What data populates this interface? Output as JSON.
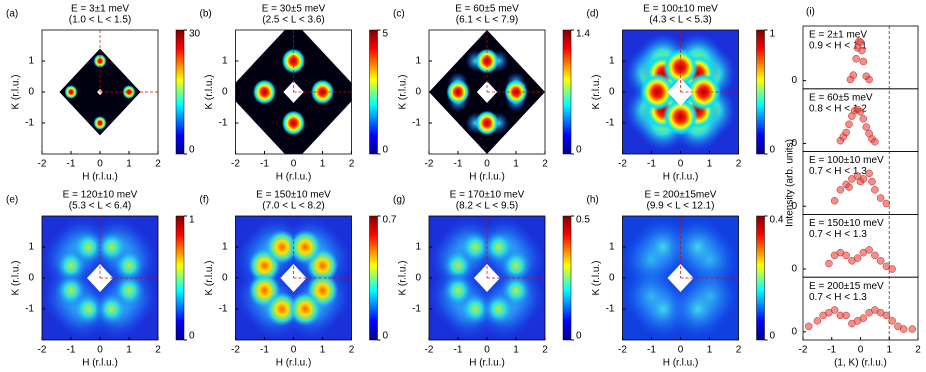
{
  "chart_data": [
    {
      "type": "heatmap",
      "label": "(a)",
      "title": "E = 3±1 meV",
      "subtitle": "(1.0 < L < 1.5)",
      "xlabel": "H (r.l.u.)",
      "ylabel": "K (r.l.u.)",
      "xlim": [
        -2,
        2
      ],
      "xticks": [
        -2,
        -1,
        0,
        1,
        2
      ],
      "ylim": [
        -2,
        2
      ],
      "yticks": [
        -1,
        0,
        1
      ],
      "clim": [
        0,
        30
      ],
      "cticks": [
        0,
        30
      ]
    },
    {
      "type": "heatmap",
      "label": "(b)",
      "title": "E = 30±5 meV",
      "subtitle": "(2.5 < L < 3.6)",
      "xlabel": "H (r.l.u.)",
      "ylabel": "K (r.l.u.)",
      "xlim": [
        -2,
        2
      ],
      "xticks": [
        -2,
        -1,
        0,
        1,
        2
      ],
      "ylim": [
        -2,
        2
      ],
      "yticks": [
        -1,
        0,
        1
      ],
      "clim": [
        0,
        5
      ],
      "cticks": [
        0,
        5
      ]
    },
    {
      "type": "heatmap",
      "label": "(c)",
      "title": "E = 60±5 meV",
      "subtitle": "(6.1 < L < 7.9)",
      "xlabel": "H (r.l.u.)",
      "ylabel": "K (r.l.u.)",
      "xlim": [
        -2,
        2
      ],
      "xticks": [
        -2,
        -1,
        0,
        1,
        2
      ],
      "ylim": [
        -2,
        2
      ],
      "yticks": [
        -1,
        0,
        1
      ],
      "clim": [
        0,
        1.4
      ],
      "cticks": [
        0,
        1.4
      ]
    },
    {
      "type": "heatmap",
      "label": "(d)",
      "title": "E = 100±10 meV",
      "subtitle": "(4.3 < L < 5.3)",
      "xlabel": "H (r.l.u.)",
      "ylabel": "K (r.l.u.)",
      "xlim": [
        -2,
        2
      ],
      "xticks": [
        -2,
        -1,
        0,
        1,
        2
      ],
      "ylim": [
        -2,
        2
      ],
      "yticks": [
        -1,
        0,
        1
      ],
      "clim": [
        0,
        1
      ],
      "cticks": [
        0,
        1
      ]
    },
    {
      "type": "heatmap",
      "label": "(e)",
      "title": "E = 120±10 meV",
      "subtitle": "(5.3 < L < 6.4)",
      "xlabel": "H (r.l.u.)",
      "ylabel": "K (r.l.u.)",
      "xlim": [
        -2,
        2
      ],
      "xticks": [
        -2,
        -1,
        0,
        1,
        2
      ],
      "ylim": [
        -2,
        2
      ],
      "yticks": [
        -1,
        0,
        1
      ],
      "clim": [
        0,
        1
      ],
      "cticks": [
        0,
        1
      ]
    },
    {
      "type": "heatmap",
      "label": "(f)",
      "title": "E = 150±10 meV",
      "subtitle": "(7.0 < L < 8.2)",
      "xlabel": "H (r.l.u.)",
      "ylabel": "K (r.l.u.)",
      "xlim": [
        -2,
        2
      ],
      "xticks": [
        -2,
        -1,
        0,
        1,
        2
      ],
      "ylim": [
        -2,
        2
      ],
      "yticks": [
        -1,
        0,
        1
      ],
      "clim": [
        0,
        0.7
      ],
      "cticks": [
        0,
        0.7
      ]
    },
    {
      "type": "heatmap",
      "label": "(g)",
      "title": "E = 170±10 meV",
      "subtitle": "(8.2 < L < 9.5)",
      "xlabel": "H (r.l.u.)",
      "ylabel": "K (r.l.u.)",
      "xlim": [
        -2,
        2
      ],
      "xticks": [
        -2,
        -1,
        0,
        1,
        2
      ],
      "ylim": [
        -2,
        2
      ],
      "yticks": [
        -1,
        0,
        1
      ],
      "clim": [
        0,
        0.5
      ],
      "cticks": [
        0,
        0.5
      ]
    },
    {
      "type": "heatmap",
      "label": "(h)",
      "title": "E = 200±15meV",
      "subtitle": "(9.9 < L < 12.1)",
      "xlabel": "H (r.l.u.)",
      "ylabel": "K (r.l.u.)",
      "xlim": [
        -2,
        2
      ],
      "xticks": [
        -2,
        -1,
        0,
        1,
        2
      ],
      "ylim": [
        -2,
        2
      ],
      "yticks": [
        -1,
        0,
        1
      ],
      "clim": [
        0,
        0.4
      ],
      "cticks": [
        0,
        0.4
      ]
    },
    {
      "type": "scatter",
      "label": "(i)",
      "xlabel": "(1, K) (r.l.u.)",
      "ylabel": "Intensity (arb. units)",
      "xlim": [
        -2,
        2
      ],
      "xticks": [
        -2,
        -1,
        0,
        1,
        2
      ],
      "vline": 1,
      "color": "#e8453c",
      "panels": [
        {
          "title": "E = 2±1 meV",
          "subtitle": "0.9 < H < 1.1",
          "ylim": [
            -0.15,
            1
          ],
          "yticks": [
            0
          ],
          "x": [
            -0.35,
            -0.25,
            -0.15,
            -0.1,
            -0.05,
            0,
            0.05,
            0.1,
            0.2,
            0.3
          ],
          "values": [
            0.02,
            0.1,
            0.4,
            0.6,
            0.72,
            0.7,
            0.55,
            0.35,
            0.08,
            0.02
          ]
        },
        {
          "title": "E = 60±5 meV",
          "subtitle": "0.8 < H < 1.2",
          "ylim": [
            -0.15,
            1
          ],
          "yticks": [
            0
          ],
          "x": [
            -0.7,
            -0.6,
            -0.5,
            -0.4,
            -0.3,
            -0.2,
            -0.1,
            0,
            0.1,
            0.2,
            0.3,
            0.4,
            0.5
          ],
          "values": [
            0.05,
            0.12,
            0.2,
            0.35,
            0.5,
            0.6,
            0.62,
            0.58,
            0.45,
            0.3,
            0.18,
            0.08,
            0.03
          ]
        },
        {
          "title": "E = 100±10 meV",
          "subtitle": "0.7 < H < 1.3",
          "ylim": [
            -0.15,
            1
          ],
          "yticks": [
            0
          ],
          "x": [
            -0.9,
            -0.7,
            -0.5,
            -0.4,
            -0.3,
            -0.1,
            0,
            0.1,
            0.3,
            0.4,
            0.5,
            0.7,
            0.9
          ],
          "values": [
            0.1,
            0.3,
            0.4,
            0.35,
            0.5,
            0.55,
            0.45,
            0.5,
            0.6,
            0.45,
            0.3,
            0.15,
            0.05
          ]
        },
        {
          "title": "E = 150±10 meV",
          "subtitle": "0.7 < H < 1.3",
          "ylim": [
            -0.15,
            1
          ],
          "yticks": [
            0
          ],
          "x": [
            -1.1,
            -0.9,
            -0.7,
            -0.5,
            -0.3,
            -0.1,
            0.1,
            0.3,
            0.5,
            0.7,
            0.9,
            1.1
          ],
          "values": [
            0.1,
            0.25,
            0.3,
            0.25,
            0.15,
            0.2,
            0.3,
            0.35,
            0.25,
            0.15,
            0.05,
            0.0
          ]
        },
        {
          "title": "E = 200±15 meV",
          "subtitle": "0.7 < H < 1.3",
          "ylim": [
            -0.15,
            1
          ],
          "yticks": [
            0
          ],
          "x": [
            -1.8,
            -1.5,
            -1.3,
            -1.1,
            -0.9,
            -0.7,
            -0.5,
            -0.3,
            -0.1,
            0.1,
            0.3,
            0.5,
            0.7,
            0.9,
            1.1,
            1.3,
            1.5,
            1.8
          ],
          "values": [
            0.1,
            0.2,
            0.3,
            0.35,
            0.4,
            0.3,
            0.3,
            0.15,
            0.2,
            0.25,
            0.35,
            0.4,
            0.35,
            0.3,
            0.2,
            0.1,
            0.05,
            0.05
          ]
        }
      ]
    }
  ]
}
